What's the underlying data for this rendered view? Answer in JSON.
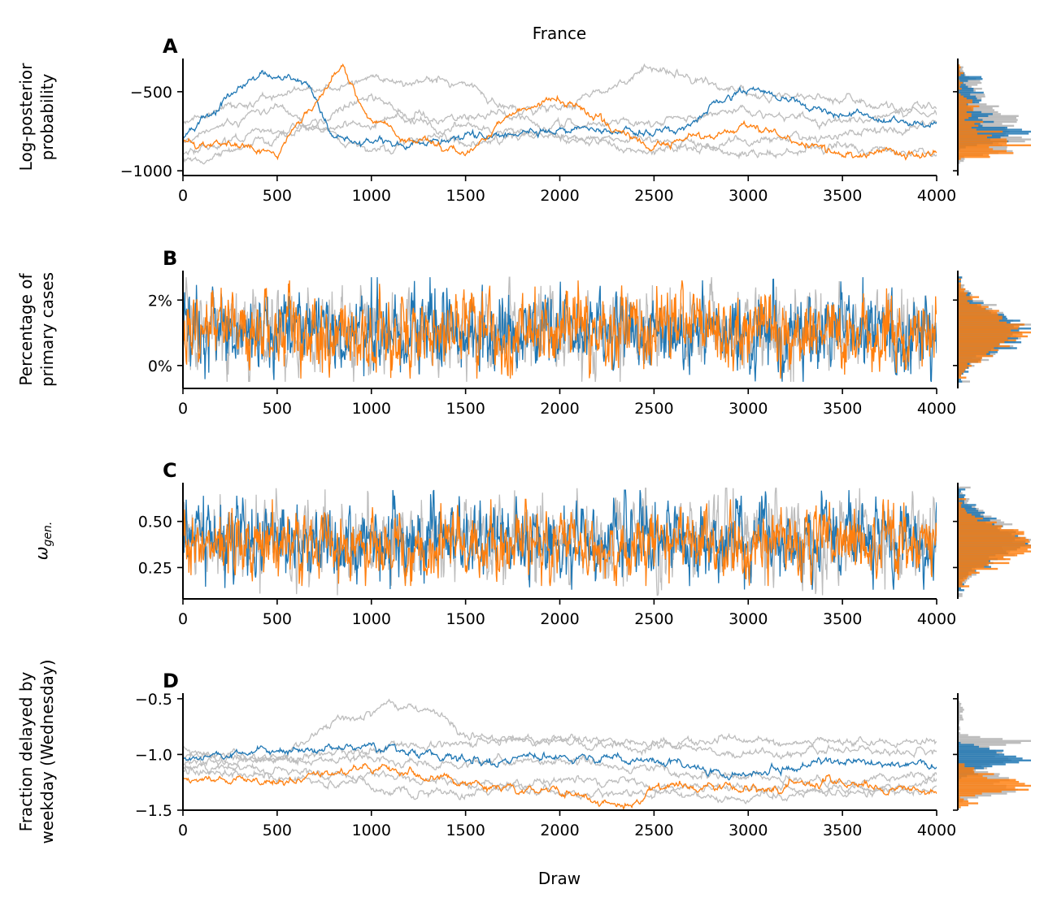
{
  "figure": {
    "title": "France",
    "xlabel": "Draw"
  },
  "chart_data": [
    {
      "type": "line",
      "panel_letter": "A",
      "ylabel": [
        "Log-posterior",
        "probability"
      ],
      "xlim": [
        0,
        4000
      ],
      "ylim": [
        -1030,
        -290
      ],
      "xticks": [
        0,
        500,
        1000,
        1500,
        2000,
        2500,
        3000,
        3500,
        4000
      ],
      "yticks": [
        -500,
        -1000
      ],
      "ytick_labels": [
        "−500",
        "−1000"
      ],
      "grid": false,
      "marginal_histogram": true,
      "series": [
        {
          "color": "#bdbdbd",
          "x": [
            0,
            500,
            1000,
            1500,
            2000,
            2500,
            3000,
            3500,
            4000
          ],
          "values": [
            -950,
            -800,
            -540,
            -840,
            -700,
            -700,
            -620,
            -700,
            -580
          ]
        },
        {
          "color": "#bdbdbd",
          "x": [
            0,
            500,
            1000,
            1500,
            2000,
            2500,
            3000,
            3500,
            4000
          ],
          "values": [
            -880,
            -750,
            -700,
            -650,
            -620,
            -360,
            -500,
            -560,
            -640
          ]
        },
        {
          "color": "#bdbdbd",
          "x": [
            0,
            500,
            1000,
            1500,
            2000,
            2500,
            3000,
            3500,
            4000
          ],
          "values": [
            -700,
            -520,
            -420,
            -450,
            -780,
            -880,
            -820,
            -780,
            -700
          ]
        },
        {
          "color": "#bdbdbd",
          "x": [
            0,
            500,
            1000,
            1500,
            2000,
            2500,
            3000,
            3500,
            4000
          ],
          "values": [
            -820,
            -600,
            -880,
            -720,
            -800,
            -780,
            -900,
            -840,
            -880
          ]
        },
        {
          "color": "#1f77b4",
          "x": [
            0,
            400,
            500,
            650,
            800,
            1000,
            1500,
            2000,
            2600,
            3000,
            3500,
            4000
          ],
          "values": [
            -780,
            -380,
            -430,
            -420,
            -800,
            -820,
            -800,
            -740,
            -760,
            -460,
            -650,
            -700
          ]
        },
        {
          "color": "#ff7f0e",
          "x": [
            0,
            500,
            850,
            1000,
            1500,
            1800,
            2000,
            2500,
            3000,
            3500,
            4000
          ],
          "values": [
            -820,
            -870,
            -330,
            -700,
            -900,
            -600,
            -560,
            -850,
            -700,
            -900,
            -900
          ]
        }
      ]
    },
    {
      "type": "line",
      "panel_letter": "B",
      "ylabel": [
        "Percentage of",
        "primary cases"
      ],
      "xlim": [
        0,
        4000
      ],
      "ylim": [
        -0.7,
        2.9
      ],
      "xticks": [
        0,
        500,
        1000,
        1500,
        2000,
        2500,
        3000,
        3500,
        4000
      ],
      "yticks": [
        2,
        0
      ],
      "ytick_labels": [
        "2%",
        "0%"
      ],
      "grid": false,
      "marginal_histogram": true,
      "series": [
        {
          "color": "#bdbdbd",
          "x": [
            0,
            4000
          ],
          "values": [
            1.0,
            1.0
          ],
          "noise_range": [
            -0.5,
            2.7
          ]
        },
        {
          "color": "#1f77b4",
          "x": [
            0,
            4000
          ],
          "values": [
            1.0,
            1.0
          ],
          "noise_range": [
            -0.5,
            2.7
          ]
        },
        {
          "color": "#ff7f0e",
          "x": [
            0,
            4000
          ],
          "values": [
            1.0,
            1.0
          ],
          "noise_range": [
            -0.4,
            2.6
          ]
        }
      ]
    },
    {
      "type": "line",
      "panel_letter": "C",
      "ylabel": [
        "ω_gen."
      ],
      "xlim": [
        0,
        4000
      ],
      "ylim": [
        0.08,
        0.71
      ],
      "xticks": [
        0,
        500,
        1000,
        1500,
        2000,
        2500,
        3000,
        3500,
        4000
      ],
      "yticks": [
        0.5,
        0.25
      ],
      "ytick_labels": [
        "0.50",
        "0.25"
      ],
      "grid": false,
      "marginal_histogram": true,
      "series": [
        {
          "color": "#bdbdbd",
          "x": [
            0,
            4000
          ],
          "values": [
            0.4,
            0.4
          ],
          "noise_range": [
            0.1,
            0.68
          ]
        },
        {
          "color": "#1f77b4",
          "x": [
            0,
            4000
          ],
          "values": [
            0.4,
            0.4
          ],
          "noise_range": [
            0.13,
            0.67
          ]
        },
        {
          "color": "#ff7f0e",
          "x": [
            0,
            4000
          ],
          "values": [
            0.38,
            0.38
          ],
          "noise_range": [
            0.15,
            0.62
          ]
        }
      ]
    },
    {
      "type": "line",
      "panel_letter": "D",
      "ylabel": [
        "Fraction delayed by",
        "weekday (Wednesday)"
      ],
      "xlim": [
        0,
        4000
      ],
      "ylim": [
        -1.5,
        -0.45
      ],
      "xticks": [
        0,
        500,
        1000,
        1500,
        2000,
        2500,
        3000,
        3500,
        4000
      ],
      "yticks": [
        -0.5,
        -1.0,
        -1.5
      ],
      "ytick_labels": [
        "−0.5",
        "−1.0",
        "−1.5"
      ],
      "grid": false,
      "marginal_histogram": true,
      "series": [
        {
          "color": "#bdbdbd",
          "x": [
            0,
            500,
            800,
            1100,
            1350,
            1500,
            2000,
            2500,
            3000,
            3500,
            4000
          ],
          "values": [
            -0.95,
            -1.05,
            -0.7,
            -0.55,
            -0.65,
            -0.85,
            -0.9,
            -0.95,
            -0.85,
            -0.9,
            -0.88
          ]
        },
        {
          "color": "#bdbdbd",
          "x": [
            0,
            500,
            1000,
            1500,
            2000,
            2500,
            3000,
            3500,
            4000
          ],
          "values": [
            -1.0,
            -1.05,
            -0.95,
            -0.9,
            -0.85,
            -0.9,
            -1.0,
            -0.95,
            -1.0
          ]
        },
        {
          "color": "#bdbdbd",
          "x": [
            0,
            500,
            1000,
            1500,
            2000,
            2500,
            3000,
            3500,
            4000
          ],
          "values": [
            -1.1,
            -1.05,
            -1.05,
            -1.1,
            -1.05,
            -1.15,
            -1.2,
            -1.25,
            -1.2
          ]
        },
        {
          "color": "#bdbdbd",
          "x": [
            0,
            500,
            1000,
            1500,
            2000,
            2500,
            3000,
            3500,
            4000
          ],
          "values": [
            -1.15,
            -1.2,
            -1.3,
            -1.35,
            -1.2,
            -1.3,
            -1.3,
            -1.35,
            -1.3
          ]
        },
        {
          "color": "#bdbdbd",
          "x": [
            0,
            500,
            1000,
            1500,
            2000,
            2500,
            3000,
            3500,
            4000
          ],
          "values": [
            -1.1,
            -1.15,
            -1.2,
            -1.25,
            -1.35,
            -1.35,
            -1.4,
            -1.3,
            -1.25
          ]
        },
        {
          "color": "#1f77b4",
          "x": [
            0,
            500,
            1000,
            1500,
            2000,
            2500,
            3000,
            3500,
            4000
          ],
          "values": [
            -1.05,
            -0.95,
            -0.93,
            -1.05,
            -1.02,
            -1.05,
            -1.2,
            -1.05,
            -1.1
          ]
        },
        {
          "color": "#ff7f0e",
          "x": [
            0,
            500,
            1000,
            1500,
            2000,
            2400,
            2500,
            3000,
            3500,
            4000
          ],
          "values": [
            -1.2,
            -1.25,
            -1.1,
            -1.25,
            -1.35,
            -1.45,
            -1.3,
            -1.3,
            -1.25,
            -1.35
          ]
        }
      ]
    }
  ]
}
